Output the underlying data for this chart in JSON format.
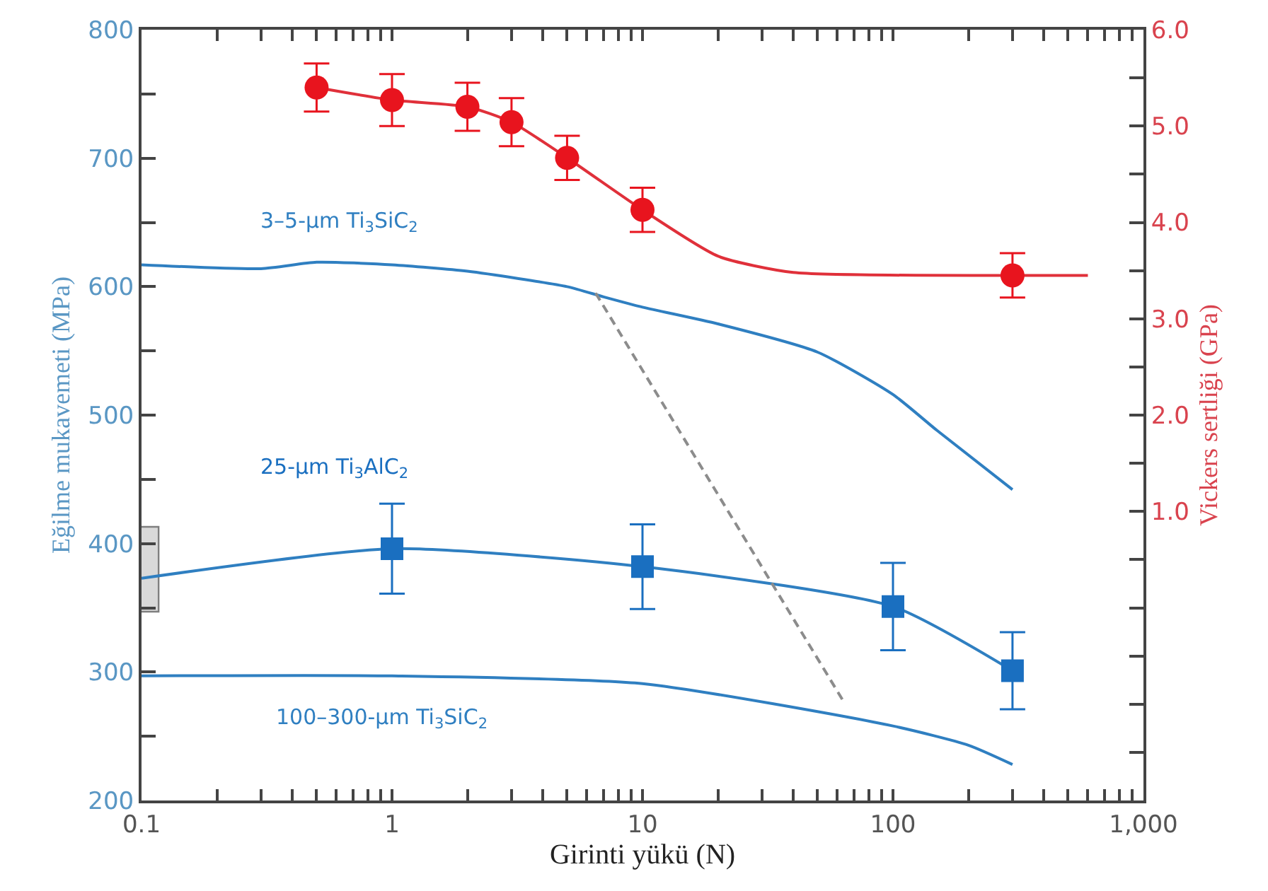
{
  "chart_data": {
    "type": "line",
    "xlabel": "Girinti yükü (N)",
    "ylabel": "Eğilme mukavemeti (MPa)",
    "y2label": "Vickers sertliği (GPa)",
    "log": "x",
    "xlim": [
      0.1,
      1000
    ],
    "xticks": [
      {
        "value": 0.1,
        "label": "0.1"
      },
      {
        "value": 1,
        "label": "1"
      },
      {
        "value": 10,
        "label": "10"
      },
      {
        "value": 100,
        "label": "100"
      },
      {
        "value": 1000,
        "label": "1,000"
      },
      {
        "value": 0.2,
        "label": null
      },
      {
        "value": 0.3,
        "label": null
      },
      {
        "value": 0.4,
        "label": null
      },
      {
        "value": 0.5,
        "label": null
      },
      {
        "value": 0.6,
        "label": null
      },
      {
        "value": 0.7,
        "label": null
      },
      {
        "value": 0.8,
        "label": null
      },
      {
        "value": 0.9,
        "label": null
      },
      {
        "value": 2,
        "label": null
      },
      {
        "value": 3,
        "label": null
      },
      {
        "value": 4,
        "label": null
      },
      {
        "value": 5,
        "label": null
      },
      {
        "value": 6,
        "label": null
      },
      {
        "value": 7,
        "label": null
      },
      {
        "value": 8,
        "label": null
      },
      {
        "value": 9,
        "label": null
      },
      {
        "value": 20,
        "label": null
      },
      {
        "value": 30,
        "label": null
      },
      {
        "value": 40,
        "label": null
      },
      {
        "value": 50,
        "label": null
      },
      {
        "value": 60,
        "label": null
      },
      {
        "value": 70,
        "label": null
      },
      {
        "value": 80,
        "label": null
      },
      {
        "value": 90,
        "label": null
      },
      {
        "value": 200,
        "label": null
      },
      {
        "value": 300,
        "label": null
      },
      {
        "value": 400,
        "label": null
      },
      {
        "value": 500,
        "label": null
      },
      {
        "value": 600,
        "label": null
      },
      {
        "value": 700,
        "label": null
      },
      {
        "value": 800,
        "label": null
      },
      {
        "value": 900,
        "label": null
      }
    ],
    "ylim": [
      200,
      800
    ],
    "yticks": [
      200,
      300,
      400,
      500,
      600,
      700,
      800,
      {
        "value": 250,
        "label": null
      },
      {
        "value": 350,
        "label": null
      },
      {
        "value": 450,
        "label": null
      },
      {
        "value": 550,
        "label": null
      },
      {
        "value": 650,
        "label": null
      },
      {
        "value": 750,
        "label": null
      }
    ],
    "y2lim": [
      -2,
      6
    ],
    "y2ticks": [
      {
        "value": 1,
        "label": "1.0"
      },
      {
        "value": 2,
        "label": "2.0"
      },
      {
        "value": 3,
        "label": "3.0"
      },
      {
        "value": 4,
        "label": "4.0"
      },
      {
        "value": 5,
        "label": "5.0"
      },
      {
        "value": 6,
        "label": "6.0"
      },
      {
        "value": -1.5,
        "label": null
      },
      {
        "value": -1,
        "label": null
      },
      {
        "value": -0.5,
        "label": null
      },
      {
        "value": 0,
        "label": null
      },
      {
        "value": 0.5,
        "label": null
      },
      {
        "value": 1.5,
        "label": null
      },
      {
        "value": 2.5,
        "label": null
      },
      {
        "value": 3.5,
        "label": null
      },
      {
        "value": 4.5,
        "label": null
      },
      {
        "value": 5.5,
        "label": null
      }
    ],
    "series": [
      {
        "name": "3–5-µm Ti$_{3}$SiC$_{2}$",
        "color": "#2f7fc1",
        "marker": "none",
        "line_style": "solid",
        "x": [
          0.1,
          0.3,
          0.5,
          1,
          2,
          5,
          7,
          10,
          20,
          50,
          100,
          150,
          300
        ],
        "values": [
          617,
          614,
          619,
          617,
          612,
          600,
          592,
          584,
          571,
          549,
          516,
          488,
          442
        ]
      },
      {
        "color": "#2f7fc1",
        "marker": "none",
        "line_style": "solid",
        "x": [
          0.1,
          1,
          10,
          100,
          300
        ],
        "values": [
          373,
          396,
          382,
          351,
          301
        ]
      },
      {
        "name": "25-µm Ti$_{3}$AlC$_{2}$",
        "type": "scatter",
        "color": "#1a6fc0",
        "marker": "square",
        "x": [
          1,
          10,
          100,
          300
        ],
        "values": [
          396,
          382,
          351,
          301
        ],
        "errors": [
          35,
          33,
          34,
          30
        ]
      },
      {
        "name": "100–300-µm Ti$_{3}$SiC$_{2}$",
        "color": "#2f7fc1",
        "marker": "none",
        "line_style": "solid",
        "x": [
          0.1,
          1,
          10,
          100,
          200,
          300
        ],
        "values": [
          297,
          297,
          291,
          258,
          243,
          228
        ]
      },
      {
        "type": "bar",
        "color": "#d9d9d9",
        "x": [
          0.1
        ],
        "base": [
          347
        ],
        "values": [
          66
        ]
      },
      {
        "color": "#8c8c8c",
        "marker": "none",
        "line_style": "dashed",
        "x": [
          6.5,
          64
        ],
        "values": [
          595,
          276
        ]
      },
      {
        "axis": "y2",
        "color": "#e0303a",
        "marker": "none",
        "line_style": "solid",
        "x": [
          0.5,
          1,
          2,
          3,
          5,
          10,
          20,
          40,
          300,
          600
        ],
        "values": [
          5.4,
          5.27,
          5.2,
          5.04,
          4.67,
          4.13,
          3.65,
          3.48,
          3.45,
          3.45
        ]
      },
      {
        "type": "scatter",
        "axis": "y2",
        "color": "#e8141e",
        "marker": "circle",
        "x": [
          0.5,
          1,
          2,
          3,
          5,
          10,
          300
        ],
        "values": [
          5.4,
          5.27,
          5.2,
          5.04,
          4.67,
          4.13,
          3.45
        ],
        "errors": [
          0.25,
          0.27,
          0.25,
          0.25,
          0.23,
          0.23,
          0.23
        ]
      }
    ]
  }
}
